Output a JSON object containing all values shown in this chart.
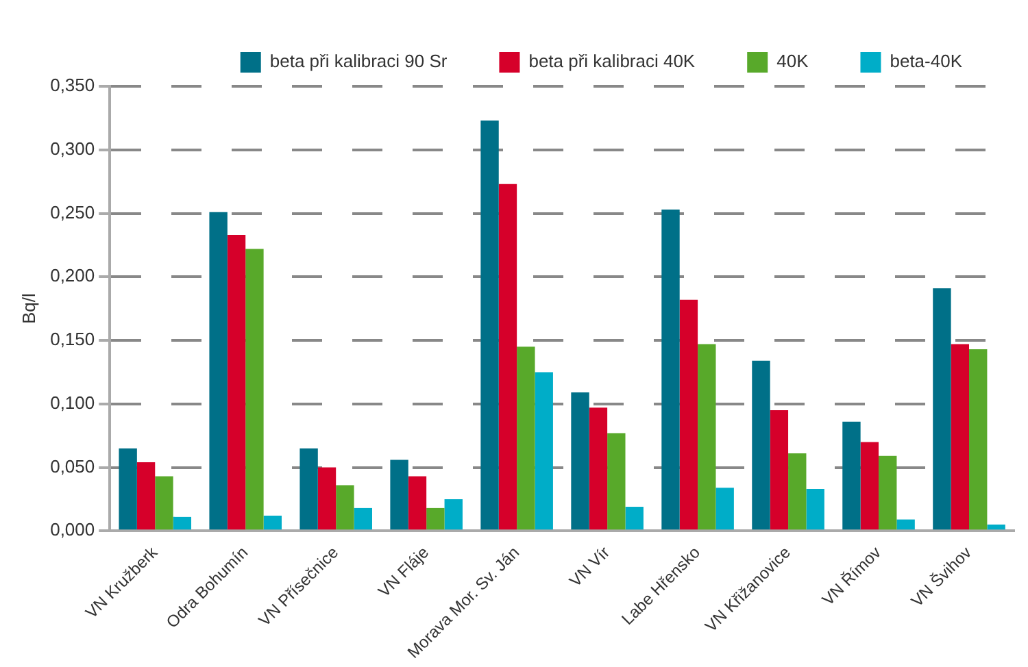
{
  "chart_data": {
    "type": "bar",
    "ylabel": "Bq/l",
    "categories": [
      "VN Kružberk",
      "Odra Bohumín",
      "VN Přísečnice",
      "VN Fláje",
      "Morava Mor. Sv. Ján",
      "VN Vír",
      "Labe Hřensko",
      "VN Křižanovice",
      "VN Římov",
      "VN Švihov"
    ],
    "series": [
      {
        "name": "beta při kalibraci 90 Sr",
        "color": "#007088",
        "values": [
          0.065,
          0.251,
          0.065,
          0.056,
          0.323,
          0.109,
          0.253,
          0.134,
          0.086,
          0.191
        ]
      },
      {
        "name": "beta při kalibraci 40K",
        "color": "#d6002a",
        "values": [
          0.054,
          0.233,
          0.05,
          0.043,
          0.273,
          0.097,
          0.182,
          0.095,
          0.07,
          0.147
        ]
      },
      {
        "name": "40K",
        "color": "#58a92a",
        "values": [
          0.043,
          0.222,
          0.036,
          0.018,
          0.145,
          0.077,
          0.147,
          0.061,
          0.059,
          0.143
        ]
      },
      {
        "name": "beta-40K",
        "color": "#00adc8",
        "values": [
          0.011,
          0.012,
          0.018,
          0.025,
          0.125,
          0.019,
          0.034,
          0.033,
          0.009,
          0.005
        ]
      }
    ],
    "ylim": [
      0,
      0.35
    ],
    "yticks": [
      {
        "value": 0,
        "label": "0,000"
      },
      {
        "value": 0.05,
        "label": "0,050"
      },
      {
        "value": 0.1,
        "label": "0,100"
      },
      {
        "value": 0.15,
        "label": "0,150"
      },
      {
        "value": 0.2,
        "label": "0,200"
      },
      {
        "value": 0.25,
        "label": "0,250"
      },
      {
        "value": 0.3,
        "label": "0,300"
      },
      {
        "value": 0.35,
        "label": "0,350"
      }
    ],
    "grid": "y",
    "legend": "top right"
  }
}
